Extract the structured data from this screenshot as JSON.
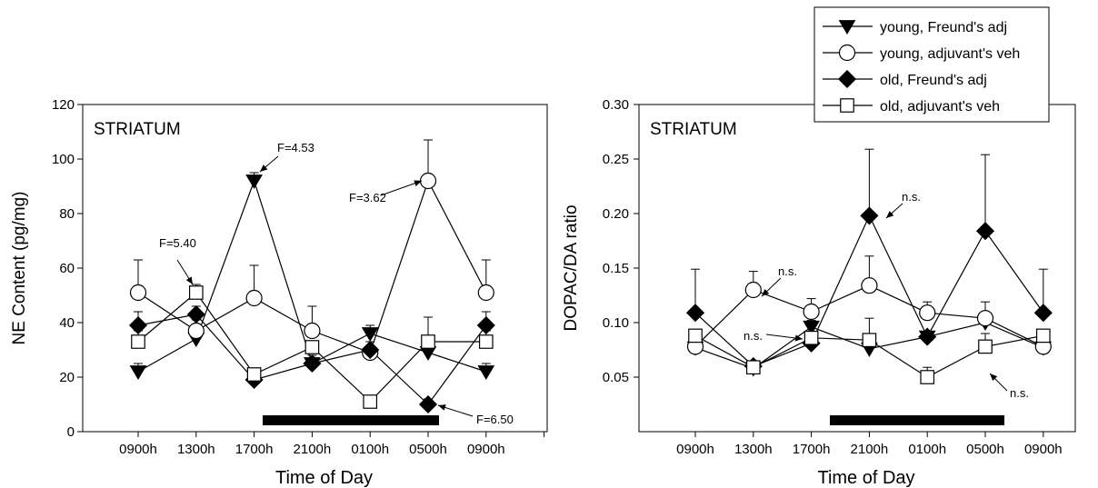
{
  "legend": {
    "placement": "top-right",
    "entries": [
      {
        "label": "young, Freund's adj",
        "marker": "triangle-down-filled"
      },
      {
        "label": "young, adjuvant's veh",
        "marker": "circle-open"
      },
      {
        "label": "old, Freund's adj",
        "marker": "diamond-filled"
      },
      {
        "label": "old, adjuvant's veh",
        "marker": "square-open"
      }
    ]
  },
  "chart_data": [
    {
      "type": "line",
      "panel_label": "STRIATUM",
      "xlabel": "Time of Day",
      "ylabel": "NE Content (pg/mg)",
      "categories": [
        "0900h",
        "1300h",
        "1700h",
        "2100h",
        "0100h",
        "0500h",
        "0900h"
      ],
      "ylim": [
        0,
        120
      ],
      "yticks": [
        "0",
        "20",
        "40",
        "60",
        "80",
        "100",
        "120"
      ],
      "grid": false,
      "dark_phase_bar": {
        "from_category_index": 2,
        "to_category_index": 5
      },
      "series": [
        {
          "name": "young, Freund's adj",
          "marker": "triangle-down-filled",
          "values": [
            22,
            34,
            92,
            25,
            36,
            29,
            22
          ],
          "err": [
            3,
            2,
            3,
            3,
            3,
            2,
            3
          ]
        },
        {
          "name": "young, adjuvant's veh",
          "marker": "circle-open",
          "values": [
            51,
            37,
            49,
            37,
            29,
            92,
            51
          ],
          "err": [
            12,
            4,
            12,
            9,
            2,
            15,
            12
          ]
        },
        {
          "name": "old, Freund's adj",
          "marker": "diamond-filled",
          "values": [
            39,
            43,
            19,
            25,
            30,
            10,
            39
          ],
          "err": [
            5,
            3,
            2,
            2,
            3,
            2,
            5
          ]
        },
        {
          "name": "old, adjuvant's veh",
          "marker": "square-open",
          "values": [
            33,
            51,
            21,
            31,
            11,
            33,
            33
          ],
          "err": [
            4,
            3,
            2,
            2,
            1,
            9,
            4
          ]
        }
      ],
      "annotations": [
        "F=5.40",
        "F=4.53",
        "F=3.62",
        "F=6.50"
      ]
    },
    {
      "type": "line",
      "panel_label": "STRIATUM",
      "xlabel": "Time of Day",
      "ylabel": "DOPAC/DA ratio",
      "categories": [
        "0900h",
        "1300h",
        "1700h",
        "2100h",
        "0100h",
        "0500h",
        "0900h"
      ],
      "ylim": [
        0,
        0.3
      ],
      "yticks": [
        "0.05",
        "0.10",
        "0.15",
        "0.20",
        "0.25",
        "0.30"
      ],
      "grid": false,
      "dark_phase_bar": {
        "from_category_index": 2,
        "to_category_index": 5
      },
      "series": [
        {
          "name": "young, Freund's adj",
          "marker": "triangle-down-filled",
          "values": [
            0.077,
            0.058,
            0.096,
            0.076,
            0.087,
            0.1,
            0.077
          ],
          "err": [
            0.004,
            0.004,
            0.006,
            0.004,
            0.005,
            0.006,
            0.004
          ]
        },
        {
          "name": "young, adjuvant's veh",
          "marker": "circle-open",
          "values": [
            0.078,
            0.13,
            0.11,
            0.134,
            0.109,
            0.104,
            0.078
          ],
          "err": [
            0.005,
            0.017,
            0.012,
            0.027,
            0.01,
            0.015,
            0.005
          ]
        },
        {
          "name": "old, Freund's adj",
          "marker": "diamond-filled",
          "values": [
            0.109,
            0.06,
            0.081,
            0.198,
            0.087,
            0.184,
            0.109
          ],
          "err": [
            0.04,
            0.003,
            0.006,
            0.061,
            0.004,
            0.07,
            0.04
          ]
        },
        {
          "name": "old, adjuvant's veh",
          "marker": "square-open",
          "values": [
            0.088,
            0.059,
            0.086,
            0.084,
            0.05,
            0.078,
            0.088
          ],
          "err": [
            0.005,
            0.003,
            0.005,
            0.02,
            0.009,
            0.012,
            0.005
          ]
        }
      ],
      "annotations": [
        "n.s.",
        "n.s.",
        "n.s.",
        "n.s."
      ]
    }
  ]
}
